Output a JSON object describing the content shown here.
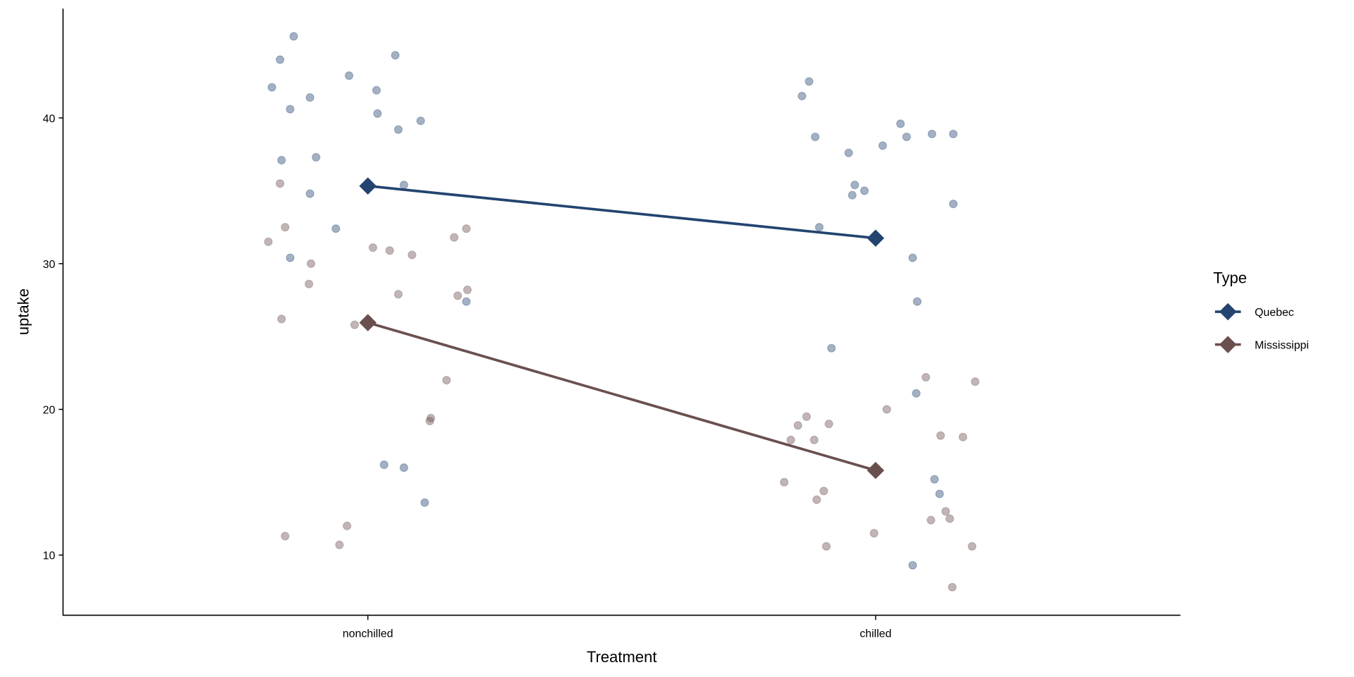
{
  "chart_data": {
    "type": "scatter",
    "subtype": "jittered points with group mean lines",
    "xlabel": "Treatment",
    "ylabel": "uptake",
    "categories": [
      "nonchilled",
      "chilled"
    ],
    "ylim": [
      5.9,
      47.5
    ],
    "yticks": [
      10,
      20,
      30,
      40
    ],
    "grid": false,
    "legend": {
      "title": "Type",
      "placement": "right",
      "entries": [
        "Quebec",
        "Mississippi"
      ]
    },
    "series": [
      {
        "name": "Quebec",
        "color": "#23446f",
        "means": [
          35.33,
          31.75
        ],
        "points": {
          "nonchilled": [
            [
              -0.146,
              45.6
            ],
            [
              -0.173,
              44.0
            ],
            [
              -0.189,
              42.1
            ],
            [
              -0.153,
              40.6
            ],
            [
              -0.114,
              41.4
            ],
            [
              -0.037,
              42.9
            ],
            [
              0.054,
              44.3
            ],
            [
              0.017,
              41.9
            ],
            [
              0.019,
              40.3
            ],
            [
              0.06,
              39.2
            ],
            [
              0.104,
              39.8
            ],
            [
              -0.17,
              37.1
            ],
            [
              -0.102,
              37.3
            ],
            [
              -0.114,
              34.8
            ],
            [
              -0.063,
              32.4
            ],
            [
              -0.153,
              30.4
            ],
            [
              0.071,
              35.4
            ],
            [
              0.194,
              27.4
            ],
            [
              0.032,
              16.2
            ],
            [
              0.071,
              16.0
            ],
            [
              0.112,
              13.6
            ]
          ],
          "chilled": [
            [
              -0.131,
              42.5
            ],
            [
              -0.145,
              41.5
            ],
            [
              -0.119,
              38.7
            ],
            [
              -0.053,
              37.6
            ],
            [
              0.014,
              38.1
            ],
            [
              0.049,
              39.6
            ],
            [
              0.061,
              38.7
            ],
            [
              0.111,
              38.9
            ],
            [
              0.153,
              38.9
            ],
            [
              -0.041,
              35.4
            ],
            [
              -0.046,
              34.7
            ],
            [
              -0.022,
              35.0
            ],
            [
              0.153,
              34.1
            ],
            [
              -0.111,
              32.5
            ],
            [
              0.073,
              30.4
            ],
            [
              0.082,
              27.4
            ],
            [
              -0.087,
              24.2
            ],
            [
              0.08,
              21.1
            ],
            [
              0.116,
              15.2
            ],
            [
              0.126,
              14.2
            ],
            [
              0.073,
              9.3
            ]
          ]
        }
      },
      {
        "name": "Mississippi",
        "color": "#6b4f4f",
        "means": [
          25.95,
          15.81
        ],
        "points": {
          "nonchilled": [
            [
              -0.173,
              35.5
            ],
            [
              -0.163,
              32.5
            ],
            [
              -0.196,
              31.5
            ],
            [
              -0.112,
              30.0
            ],
            [
              -0.116,
              28.6
            ],
            [
              -0.17,
              26.2
            ],
            [
              0.01,
              31.1
            ],
            [
              0.043,
              30.9
            ],
            [
              0.087,
              30.6
            ],
            [
              0.17,
              31.8
            ],
            [
              0.194,
              32.4
            ],
            [
              0.196,
              28.2
            ],
            [
              0.177,
              27.8
            ],
            [
              0.06,
              27.9
            ],
            [
              -0.026,
              25.8
            ],
            [
              0.155,
              22.0
            ],
            [
              0.124,
              19.4
            ],
            [
              0.122,
              19.2
            ],
            [
              -0.041,
              12.0
            ],
            [
              -0.163,
              11.3
            ],
            [
              -0.056,
              10.7
            ]
          ],
          "chilled": [
            [
              0.099,
              22.2
            ],
            [
              0.196,
              21.9
            ],
            [
              0.022,
              20.0
            ],
            [
              -0.136,
              19.5
            ],
            [
              -0.153,
              18.9
            ],
            [
              -0.092,
              19.0
            ],
            [
              -0.167,
              17.9
            ],
            [
              -0.121,
              17.9
            ],
            [
              0.128,
              18.2
            ],
            [
              0.172,
              18.1
            ],
            [
              -0.18,
              15.0
            ],
            [
              -0.102,
              14.4
            ],
            [
              -0.116,
              13.8
            ],
            [
              0.138,
              13.0
            ],
            [
              0.109,
              12.4
            ],
            [
              0.146,
              12.5
            ],
            [
              -0.097,
              10.6
            ],
            [
              -0.003,
              11.5
            ],
            [
              0.19,
              10.6
            ],
            [
              0.151,
              7.8
            ]
          ]
        }
      }
    ]
  }
}
